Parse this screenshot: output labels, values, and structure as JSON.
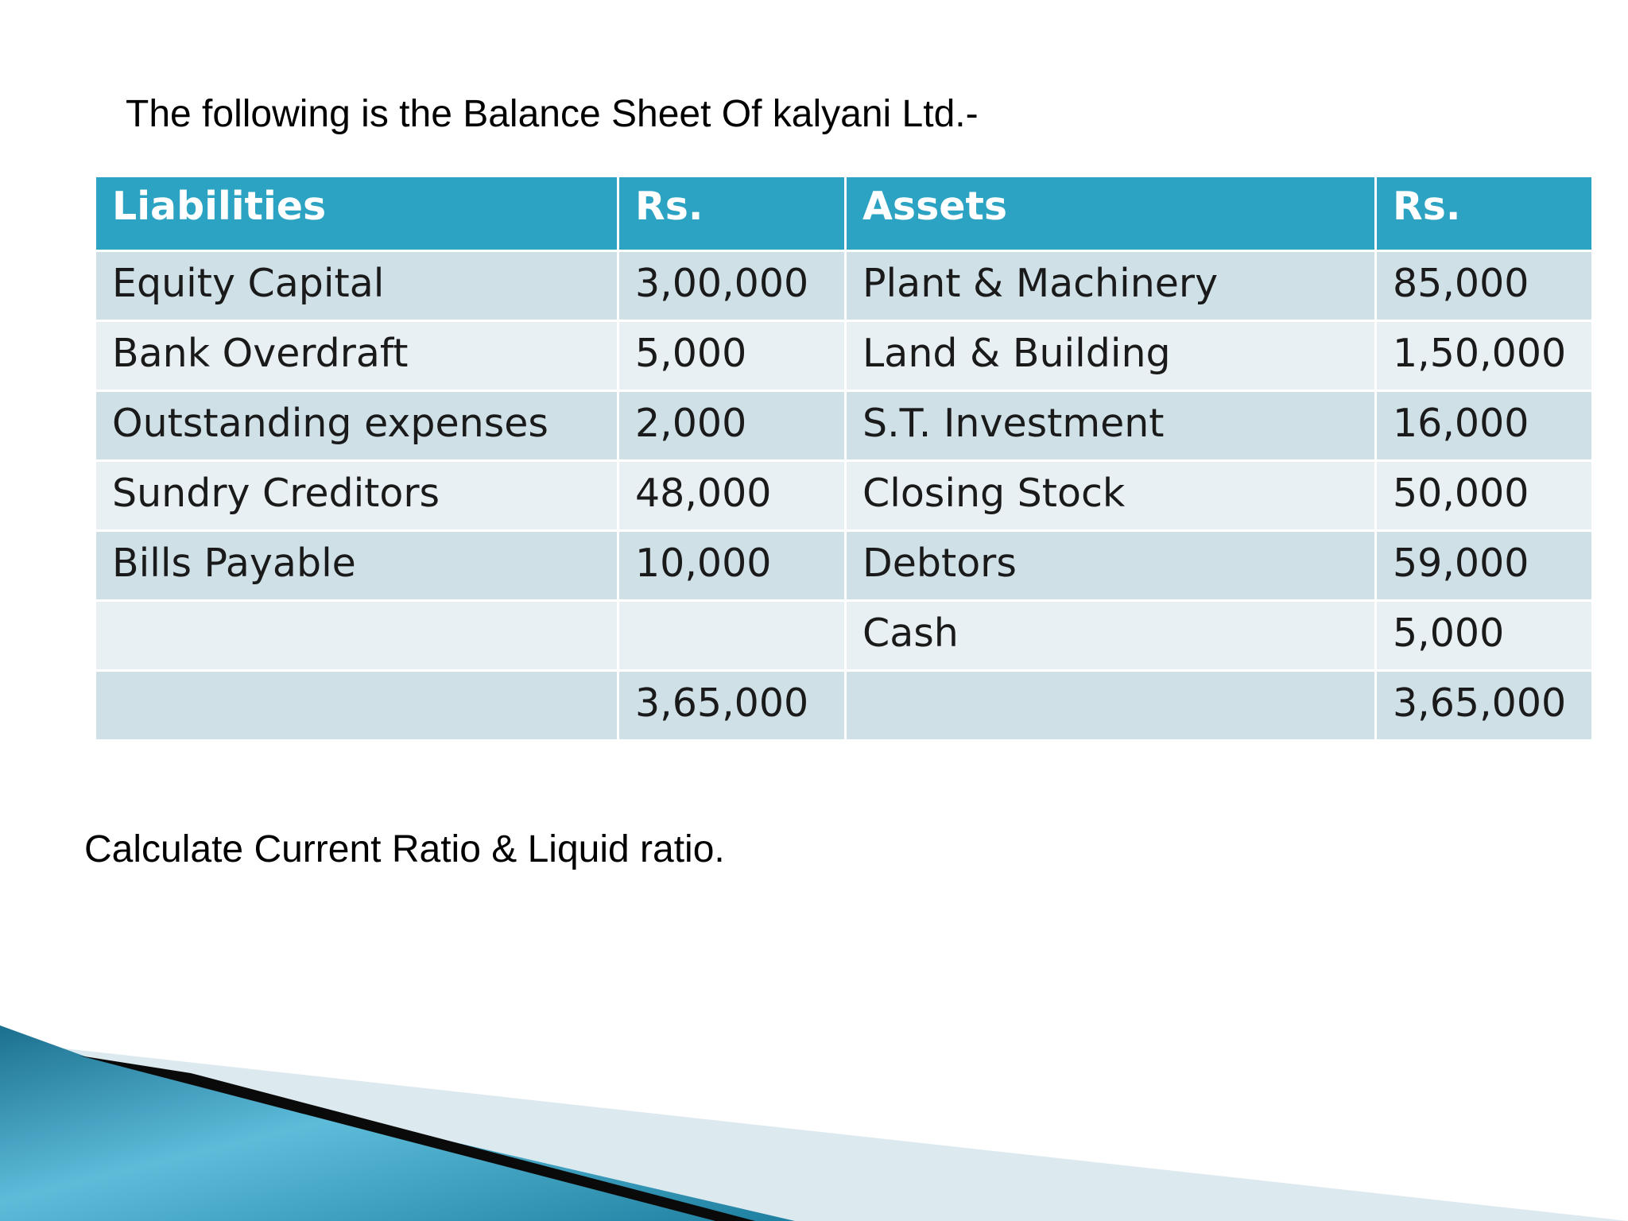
{
  "intro_text": "The following is the Balance Sheet Of kalyani Ltd.-",
  "table": {
    "headers": [
      "Liabilities",
      "Rs.",
      "Assets",
      "Rs."
    ],
    "rows": [
      [
        "Equity Capital",
        "3,00,000",
        "Plant & Machinery",
        "85,000"
      ],
      [
        "Bank Overdraft",
        "5,000",
        "Land & Building",
        "1,50,000"
      ],
      [
        "Outstanding expenses",
        "2,000",
        "S.T. Investment",
        "16,000"
      ],
      [
        "Sundry Creditors",
        "48,000",
        "Closing Stock",
        "50,000"
      ],
      [
        "Bills Payable",
        "10,000",
        "Debtors",
        "59,000"
      ],
      [
        "",
        "",
        "Cash",
        "5,000"
      ],
      [
        "",
        "3,65,000",
        "",
        "3,65,000"
      ]
    ]
  },
  "question_text": "Calculate Current Ratio & Liquid ratio.",
  "colors": {
    "header_bg": "#2ca3c3",
    "row_dark": "#cfe0e7",
    "row_light": "#e8f0f4"
  }
}
